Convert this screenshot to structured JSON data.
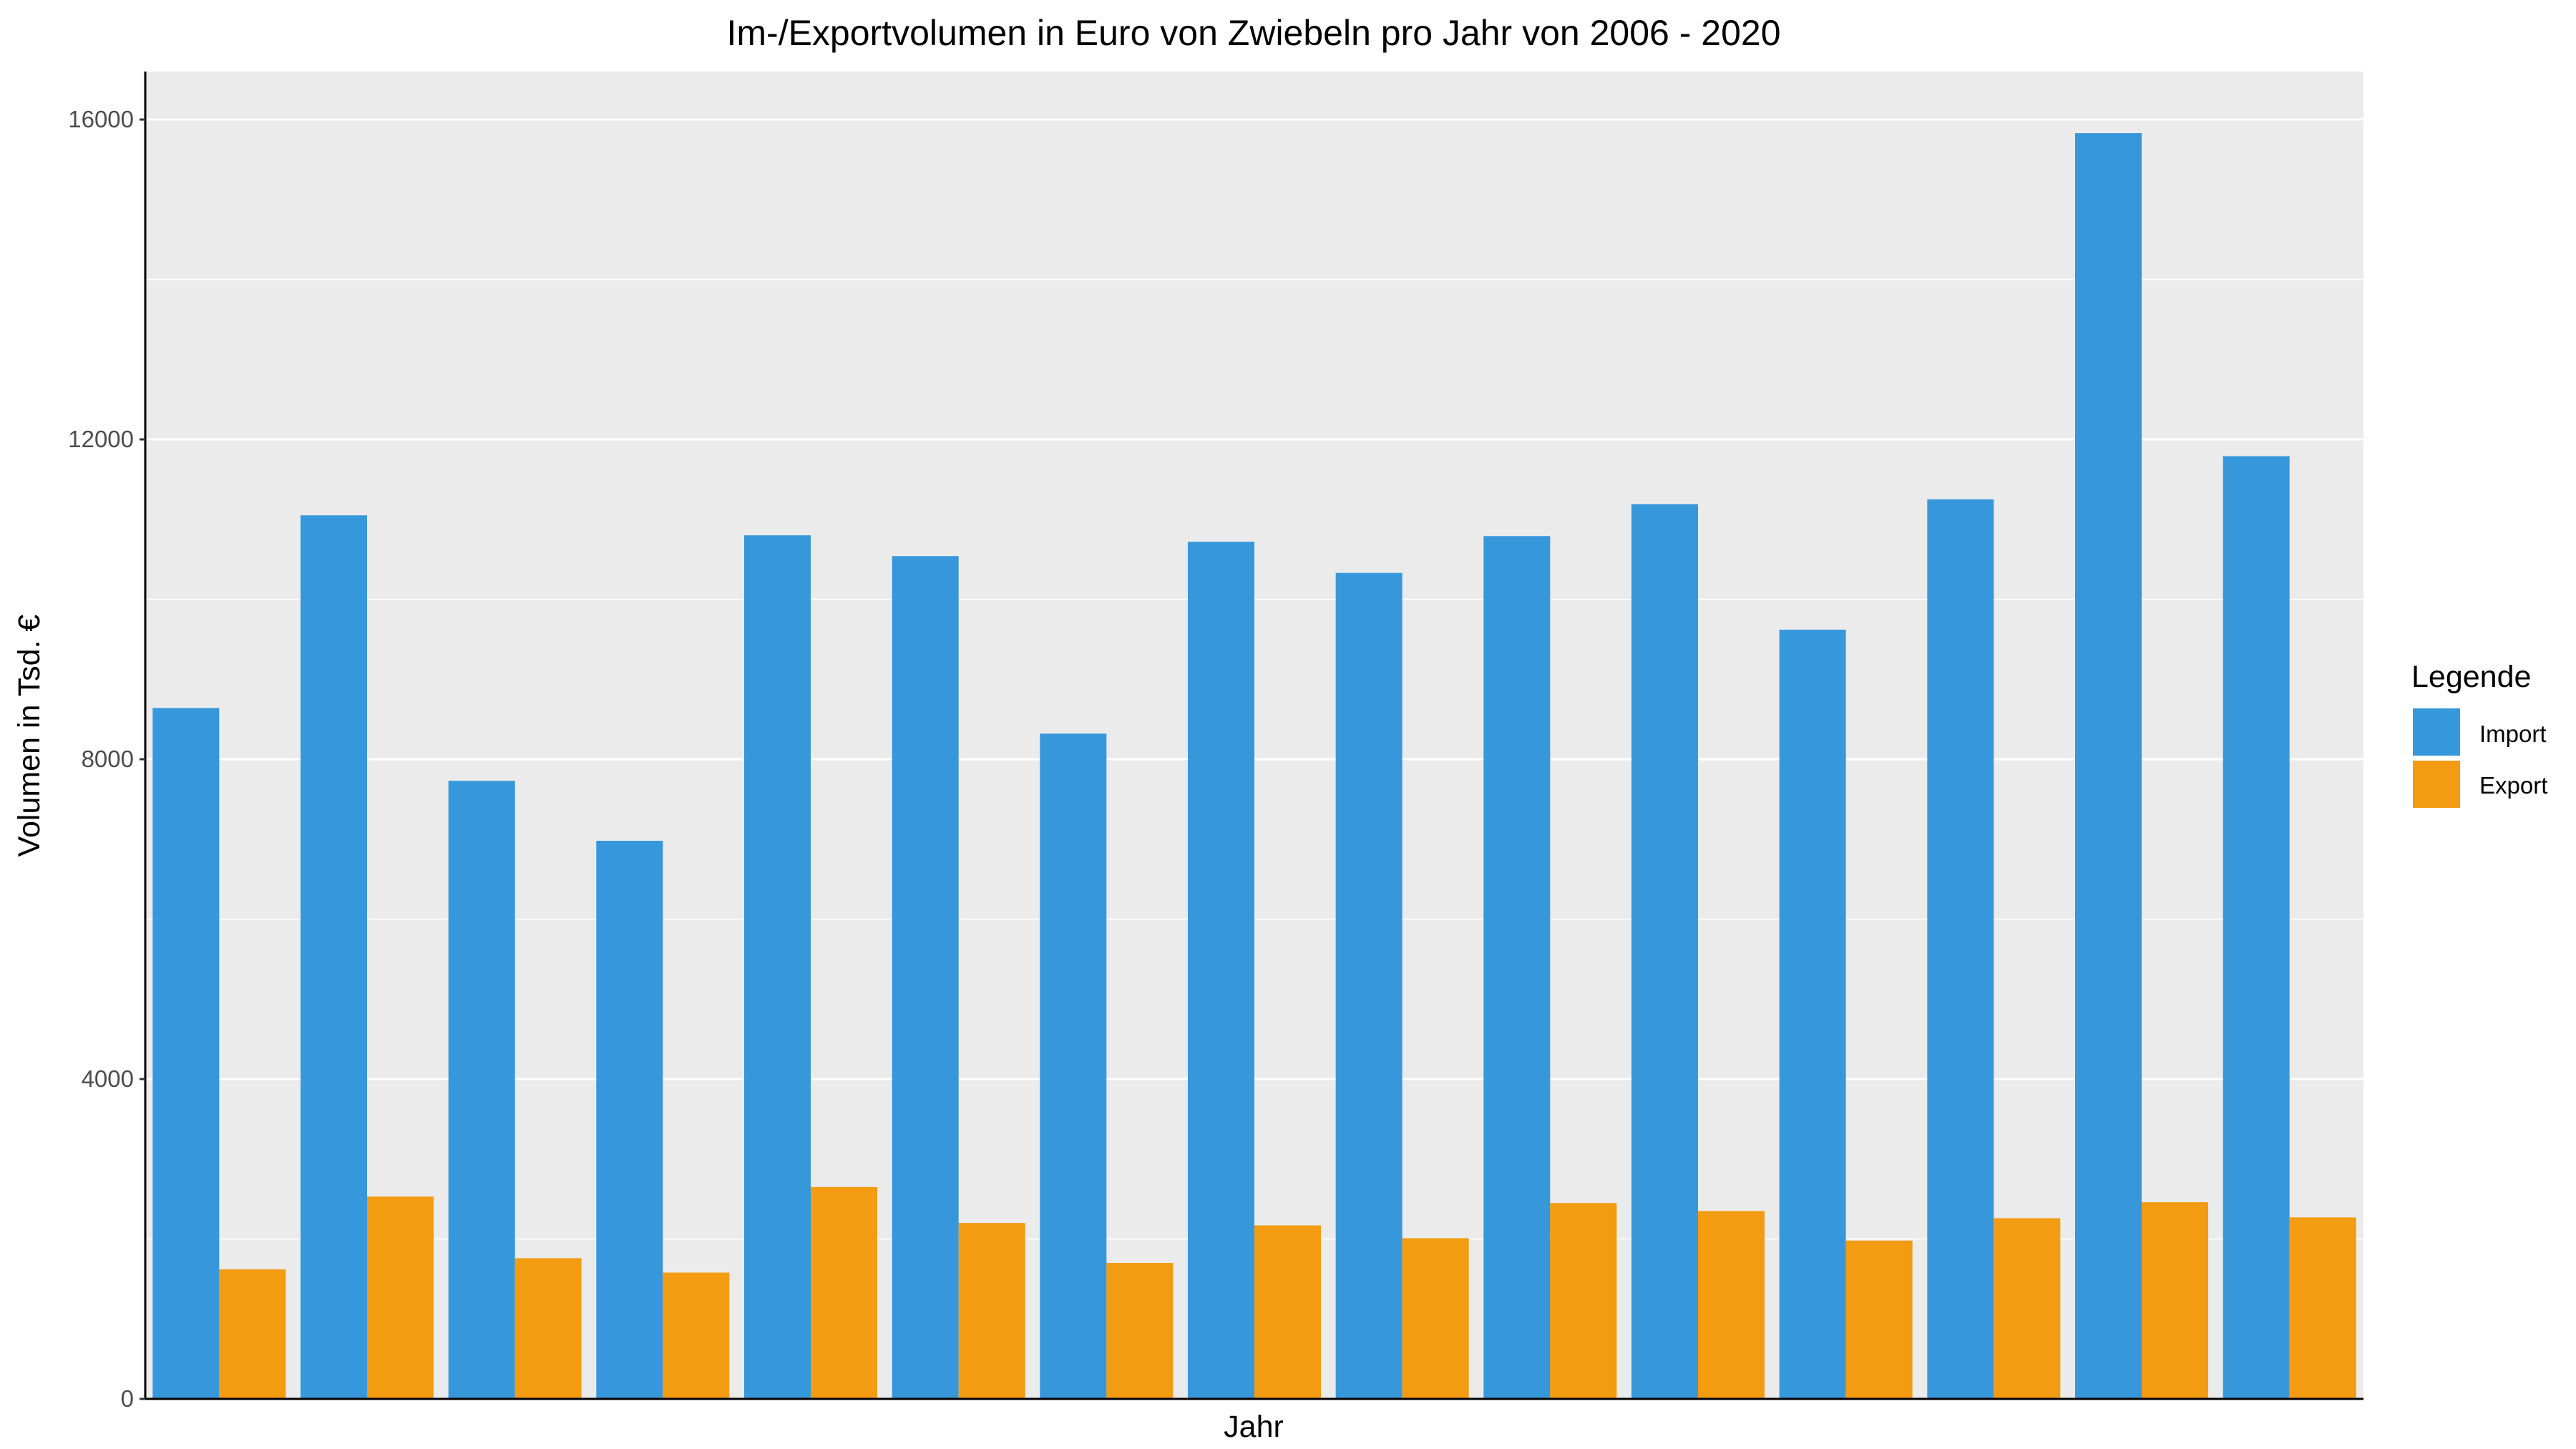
{
  "chart_data": {
    "type": "bar",
    "title": "Im-/Exportvolumen in Euro von Zwiebeln pro Jahr von 2006 - 2020",
    "xlabel": "Jahr",
    "ylabel": "Volumen in Tsd. €",
    "ylim": [
      0,
      16600
    ],
    "yticks": [
      0,
      4000,
      8000,
      12000,
      16000
    ],
    "grid": true,
    "legend": {
      "title": "Legende",
      "position": "right"
    },
    "series": [
      {
        "name": "Import",
        "color": "#3797db",
        "values": [
          8640,
          11050,
          7730,
          6980,
          10800,
          10540,
          8320,
          10720,
          10330,
          10790,
          11190,
          9620,
          11250,
          15830,
          11790
        ]
      },
      {
        "name": "Export",
        "color": "#f39c12",
        "values": [
          1620,
          2530,
          1760,
          1580,
          2650,
          2200,
          1700,
          2170,
          2010,
          2450,
          2350,
          1980,
          2260,
          2460,
          2270
        ]
      }
    ]
  }
}
